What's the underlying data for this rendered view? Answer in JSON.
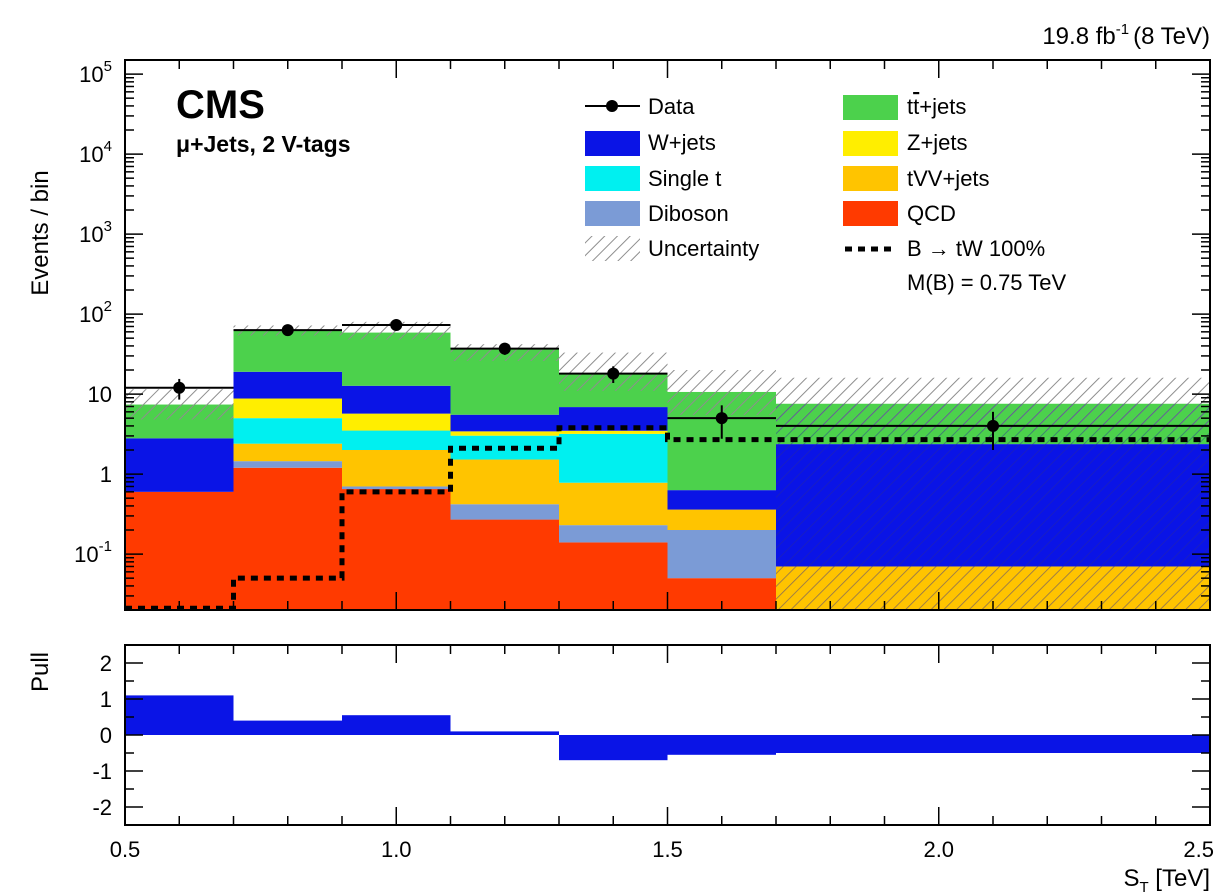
{
  "header": {
    "lumi_value": "19.8 fb",
    "lumi_exponent": "-1",
    "lumi_energy": "(8 TeV)"
  },
  "labels": {
    "experiment": "CMS",
    "channel": "μ+Jets, 2 V-tags"
  },
  "colors": {
    "qcd": "#ff3a00",
    "diboson": "#7b9bd6",
    "tvv_jets": "#ffc400",
    "single_t": "#00f0f0",
    "z_jets": "#ffee00",
    "w_jets": "#0a14e6",
    "ttbar_jets": "#4cd14c",
    "pull": "#0a14e6",
    "uncertainty_hatch": "#a0a0a0"
  },
  "legend": {
    "data": "Data",
    "w_jets": " W+jets",
    "single_t": "Single t",
    "diboson": "Diboson",
    "uncertainty": "Uncertainty",
    "ttbar_prefix": "t",
    "ttbar_bar": "t",
    "ttbar_suffix": "+jets",
    "z_jets": "Z+jets",
    "tvv_jets": "tVV+jets",
    "qcd": "QCD",
    "signal_prefix": "B ",
    "signal_arrow": "→",
    "signal_suffix": " tW 100%",
    "signal_mass": "M(B) = 0.75 TeV"
  },
  "chart_data": [
    {
      "type": "bar",
      "stacked": true,
      "log_y": true,
      "xlabel_main": "S",
      "xlabel_sub": "T",
      "xlabel_unit": " [TeV]",
      "ylabel": "Events / bin",
      "xlim": [
        0.5,
        2.5
      ],
      "ylim": [
        0.02,
        150000
      ],
      "bin_edges": [
        0.5,
        0.7,
        0.9,
        1.1,
        1.3,
        1.5,
        1.7,
        2.5
      ],
      "series": [
        {
          "name": "QCD",
          "values": [
            0.6,
            1.2,
            0.65,
            0.27,
            0.14,
            0.05,
            0.0
          ]
        },
        {
          "name": "Diboson",
          "values": [
            0.0,
            0.25,
            0.05,
            0.15,
            0.09,
            0.15,
            0.0
          ]
        },
        {
          "name": "tVV+jets",
          "values": [
            0.0,
            0.95,
            1.3,
            1.1,
            0.55,
            0.16,
            0.07
          ]
        },
        {
          "name": "Single t",
          "values": [
            0.0,
            2.6,
            1.5,
            1.5,
            2.4,
            0.0,
            0.0
          ]
        },
        {
          "name": "Z+jets",
          "values": [
            0.0,
            3.8,
            2.2,
            0.4,
            0.3,
            0.0,
            0.0
          ]
        },
        {
          "name": "W+jets",
          "values": [
            2.2,
            10.2,
            7.0,
            2.1,
            3.4,
            0.27,
            2.3
          ]
        },
        {
          "name": "tt̄+jets",
          "values": [
            4.6,
            44.0,
            46.0,
            31.0,
            11.0,
            10.0,
            5.2
          ]
        }
      ],
      "uncertainty_band": [
        [
          4.8,
          11.5
        ],
        [
          54,
          72
        ],
        [
          48,
          80
        ],
        [
          26,
          42
        ],
        [
          11,
          33
        ],
        [
          5.5,
          20
        ],
        [
          3.5,
          16
        ]
      ],
      "signal": {
        "name": "B → tW 100%, M(B) = 0.75 TeV",
        "values": [
          0.021,
          0.05,
          0.6,
          2.1,
          3.8,
          2.7,
          2.7
        ]
      },
      "data_points": {
        "name": "Data",
        "x": [
          0.6,
          0.8,
          1.0,
          1.2,
          1.4,
          1.6,
          2.1
        ],
        "y": [
          12,
          63,
          73,
          37,
          18,
          5,
          4
        ]
      },
      "y_tick_labels": [
        {
          "base": "10",
          "exp": "5"
        },
        {
          "base": "10",
          "exp": "4"
        },
        {
          "base": "10",
          "exp": "3"
        },
        {
          "base": "10",
          "exp": "2"
        },
        {
          "base": "10",
          "exp": ""
        },
        {
          "base": "1",
          "exp": ""
        },
        {
          "base": "10",
          "exp": "-1"
        }
      ],
      "y_tick_values": [
        100000,
        10000,
        1000,
        100,
        10,
        1,
        0.1
      ]
    },
    {
      "type": "bar",
      "ylabel": "Pull",
      "xlim": [
        0.5,
        2.5
      ],
      "ylim": [
        -2.5,
        2.5
      ],
      "bin_edges": [
        0.5,
        0.7,
        0.9,
        1.1,
        1.3,
        1.5,
        1.7,
        2.5
      ],
      "values": [
        1.1,
        0.4,
        0.55,
        0.1,
        -0.7,
        -0.55,
        -0.5
      ],
      "y_tick_values": [
        2,
        1,
        0,
        -1,
        -2
      ],
      "y_tick_labels": [
        "2",
        "1",
        "0",
        "-1",
        "-2"
      ],
      "x_tick_values": [
        0.5,
        1.0,
        1.5,
        2.0,
        2.5
      ],
      "x_tick_labels": [
        "0.5",
        "1.0",
        "1.5",
        "2.0",
        "2.5"
      ]
    }
  ]
}
